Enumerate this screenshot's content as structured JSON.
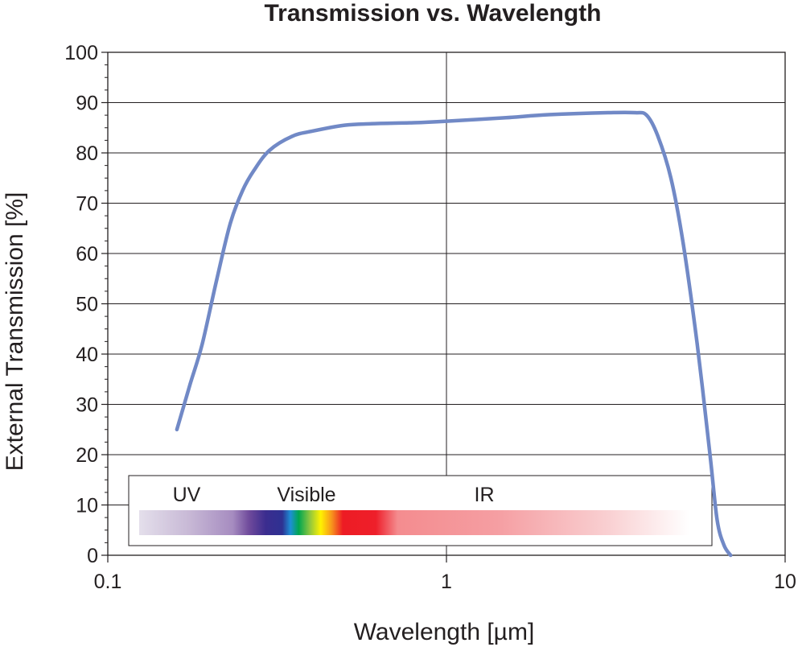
{
  "chart_data": {
    "type": "line",
    "title": "Transmission vs. Wavelength",
    "xlabel": "Wavelength [µm]",
    "ylabel": "External Transmission [%]",
    "xscale": "log",
    "xlim": [
      0.1,
      10
    ],
    "ylim": [
      0,
      100
    ],
    "x_ticks": [
      {
        "value": 0.1,
        "label": "0.1"
      },
      {
        "value": 1,
        "label": "1"
      },
      {
        "value": 10,
        "label": "10"
      }
    ],
    "y_ticks": [
      {
        "value": 0,
        "label": "0"
      },
      {
        "value": 10,
        "label": "10"
      },
      {
        "value": 20,
        "label": "20"
      },
      {
        "value": 30,
        "label": "30"
      },
      {
        "value": 40,
        "label": "40"
      },
      {
        "value": 50,
        "label": "50"
      },
      {
        "value": 60,
        "label": "60"
      },
      {
        "value": 70,
        "label": "70"
      },
      {
        "value": 80,
        "label": "80"
      },
      {
        "value": 90,
        "label": "90"
      },
      {
        "value": 100,
        "label": "100"
      }
    ],
    "grid": true,
    "series": [
      {
        "color": "#7189c6",
        "x": [
          0.16,
          0.175,
          0.19,
          0.21,
          0.23,
          0.25,
          0.27,
          0.3,
          0.35,
          0.4,
          0.5,
          0.6,
          0.8,
          1.0,
          1.5,
          2.0,
          3.0,
          3.6,
          3.9,
          4.2,
          4.6,
          5.0,
          5.5,
          6.0,
          6.3,
          6.6,
          6.9
        ],
        "y": [
          25,
          34,
          42,
          55,
          66,
          72.5,
          76.5,
          80.5,
          83.3,
          84.3,
          85.5,
          85.8,
          86.0,
          86.3,
          87.0,
          87.6,
          88.0,
          88.0,
          87.5,
          83.5,
          75,
          62,
          42,
          20,
          7,
          2,
          0
        ]
      }
    ],
    "spectrum_legend": {
      "labels": [
        "UV",
        "Visible",
        "IR"
      ]
    }
  }
}
